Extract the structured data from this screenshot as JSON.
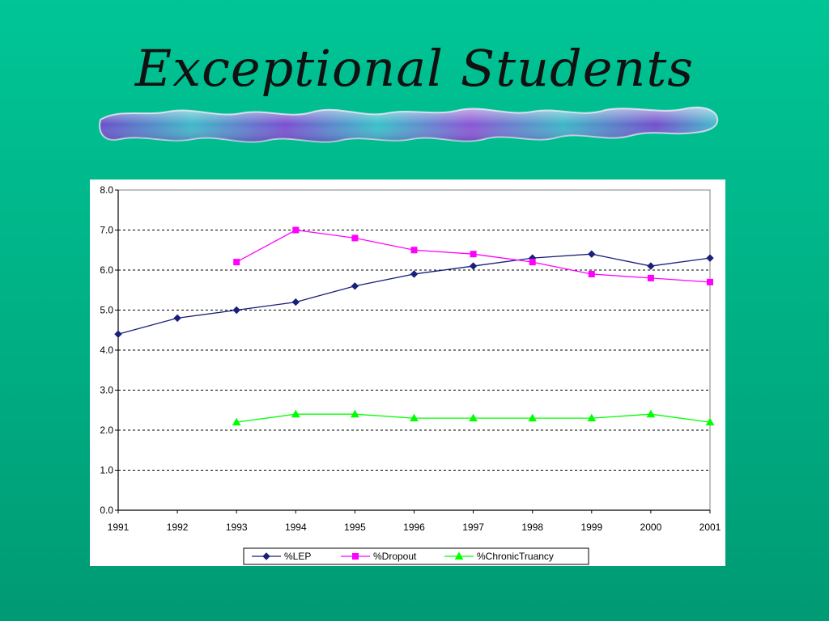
{
  "slide": {
    "title": "Exceptional Students"
  },
  "colors": {
    "background_top": "#00c596",
    "background_bottom": "#009a74",
    "chart_background": "#ffffff",
    "gridline": "#000000"
  },
  "chart_data": {
    "type": "line",
    "title": "",
    "xlabel": "",
    "ylabel": "",
    "categories": [
      "1991",
      "1992",
      "1993",
      "1994",
      "1995",
      "1996",
      "1997",
      "1998",
      "1999",
      "2000",
      "2001"
    ],
    "ylim": [
      0,
      8
    ],
    "yticks": [
      "0.0",
      "1.0",
      "2.0",
      "3.0",
      "4.0",
      "5.0",
      "6.0",
      "7.0",
      "8.0"
    ],
    "grid": "horizontal-dashed",
    "legend_position": "bottom",
    "series": [
      {
        "name": "%LEP",
        "color": "#1a1f7a",
        "marker": "diamond",
        "values": [
          4.4,
          4.8,
          5.0,
          5.2,
          5.6,
          5.9,
          6.1,
          6.3,
          6.4,
          6.1,
          6.3
        ]
      },
      {
        "name": "%Dropout",
        "color": "#ff00ff",
        "marker": "square",
        "values": [
          null,
          null,
          6.2,
          7.0,
          6.8,
          6.5,
          6.4,
          6.2,
          5.9,
          5.8,
          5.7
        ]
      },
      {
        "name": "%ChronicTruancy",
        "color": "#00ff00",
        "marker": "triangle",
        "values": [
          null,
          null,
          2.2,
          2.4,
          2.4,
          2.3,
          2.3,
          2.3,
          2.3,
          2.4,
          2.2
        ]
      }
    ]
  }
}
